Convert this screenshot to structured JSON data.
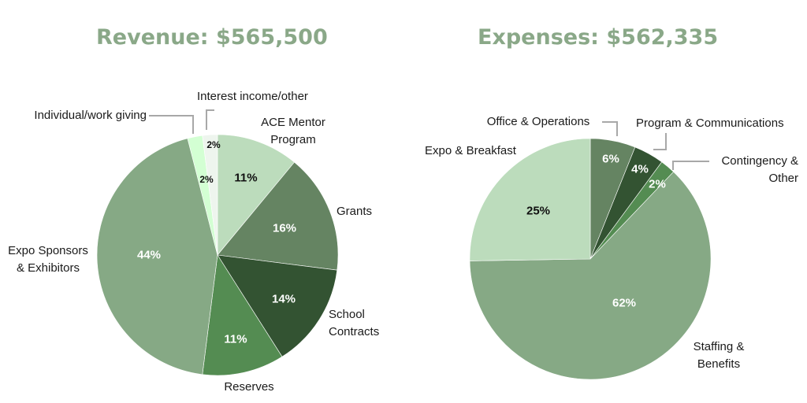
{
  "chart_data": [
    {
      "type": "pie",
      "title": "Revenue: $565,500",
      "slices": [
        {
          "label": "ACE Mentor Program",
          "value": 11,
          "value_label": "11%",
          "color": "#bcdcbc"
        },
        {
          "label": "Grants",
          "value": 16,
          "value_label": "16%",
          "color": "#658462"
        },
        {
          "label": "School Contracts",
          "value": 14,
          "value_label": "14%",
          "color": "#335332"
        },
        {
          "label": "Reserves",
          "value": 11,
          "value_label": "11%",
          "color": "#548c52"
        },
        {
          "label": "Expo Sponsors & Exhibitors",
          "value": 44,
          "value_label": "44%",
          "color": "#86a985"
        },
        {
          "label": "Individual/work giving",
          "value": 2,
          "value_label": "2%",
          "color": "#d3ffd3"
        },
        {
          "label": "Interest income/other",
          "value": 2,
          "value_label": "2%",
          "color": "#eef5ee"
        }
      ]
    },
    {
      "type": "pie",
      "title": "Expenses: $562,335",
      "slices": [
        {
          "label": "Office & Operations",
          "value": 6,
          "value_label": "6%",
          "color": "#658462"
        },
        {
          "label": "Program & Communications",
          "value": 4,
          "value_label": "4%",
          "color": "#335332"
        },
        {
          "label": "Contingency & Other",
          "value": 2,
          "value_label": "2%",
          "color": "#548c52"
        },
        {
          "label": "Staffing & Benefits",
          "value": 62,
          "value_label": "62%",
          "color": "#86a985"
        },
        {
          "label": "Expo & Breakfast",
          "value": 25,
          "value_label": "25%",
          "color": "#bcdcbc"
        }
      ]
    }
  ]
}
